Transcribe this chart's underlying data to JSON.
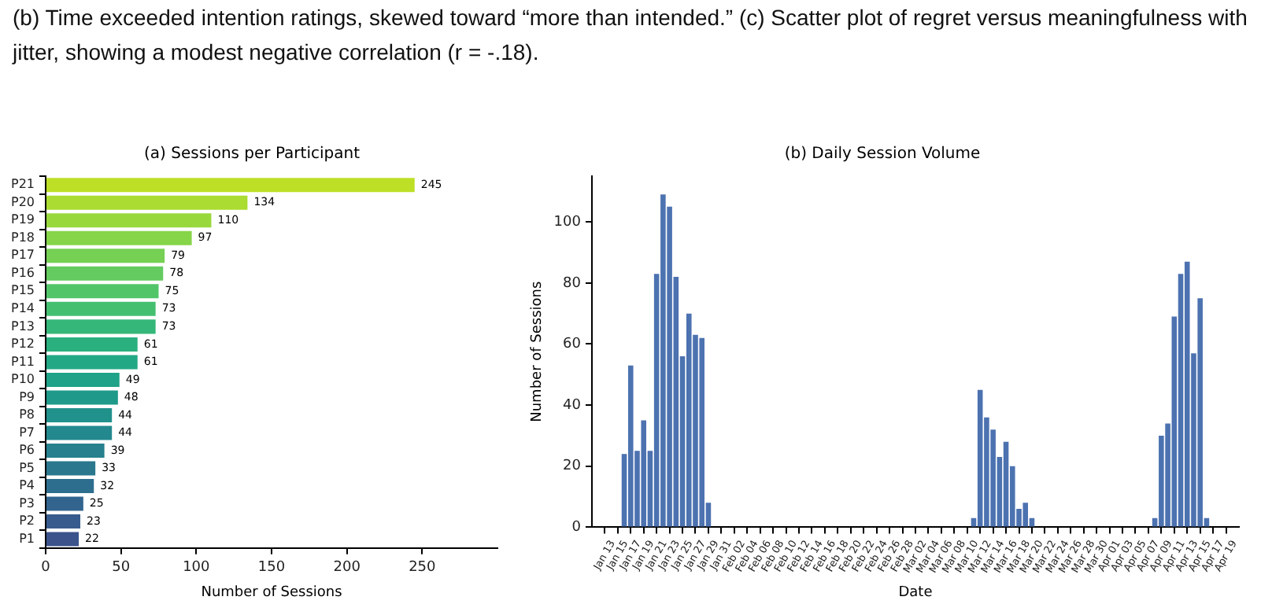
{
  "chart_data": [
    {
      "type": "bar",
      "orientation": "horizontal",
      "title": "(a) Sessions per Participant",
      "xlabel": "Number of Sessions",
      "annotations": [
        "(b) Time exceeded intention ratings, skewed toward “more than intended.” (c) Scatter plot of regret versus meaningfulness with jitter, showing a modest negative correlation (r = -.18)."
      ],
      "categories": [
        "P21",
        "P20",
        "P19",
        "P18",
        "P17",
        "P16",
        "P15",
        "P14",
        "P13",
        "P12",
        "P11",
        "P10",
        "P9",
        "P8",
        "P7",
        "P6",
        "P5",
        "P4",
        "P3",
        "P2",
        "P1"
      ],
      "values": [
        245,
        134,
        110,
        97,
        79,
        78,
        75,
        73,
        73,
        61,
        61,
        49,
        48,
        44,
        44,
        39,
        33,
        32,
        25,
        23,
        22
      ],
      "colors": [
        "#bddf26",
        "#abdc32",
        "#99d83d",
        "#86d549",
        "#75d054",
        "#63cb5f",
        "#52c569",
        "#44bf70",
        "#35b779",
        "#2ab07f",
        "#22a884",
        "#1fa287",
        "#1f9a8a",
        "#21918c",
        "#23898e",
        "#26808e",
        "#2a778e",
        "#2d6e8e",
        "#32648e",
        "#375b8d",
        "#3b528b"
      ],
      "xlim": [
        0,
        300
      ],
      "xticks": [
        0,
        50,
        100,
        150,
        200,
        250
      ],
      "data_labels": true
    },
    {
      "type": "bar",
      "title": "(b) Daily Session Volume",
      "xlabel": "Date",
      "ylabel": "Number of Sessions",
      "x": [
        "--01-16",
        "--01-17",
        "--01-18",
        "--01-19",
        "--01-20",
        "--01-21",
        "--01-22",
        "--01-23",
        "--01-24",
        "--01-25",
        "--01-26",
        "--01-27",
        "--01-28",
        "--01-29",
        "--03-11",
        "--03-12",
        "--03-13",
        "--03-14",
        "--03-15",
        "--03-16",
        "--03-17",
        "--03-18",
        "--03-19",
        "--03-20",
        "--04-08",
        "--04-09",
        "--04-10",
        "--04-11",
        "--04-12",
        "--04-13",
        "--04-14",
        "--04-15",
        "--04-16"
      ],
      "values": [
        24,
        53,
        25,
        35,
        25,
        83,
        109,
        105,
        82,
        56,
        70,
        63,
        62,
        8,
        3,
        45,
        36,
        32,
        23,
        28,
        20,
        6,
        8,
        3,
        3,
        30,
        34,
        69,
        83,
        87,
        57,
        75,
        3
      ],
      "color": "#4c72b0",
      "ylim": [
        0,
        115
      ],
      "yticks": [
        0,
        20,
        40,
        60,
        80,
        100
      ],
      "xlim": [
        "--01-11",
        "--04-21"
      ],
      "xticks": [
        {
          "value": "--01-13",
          "label": "Jan 13"
        },
        {
          "value": "--01-15",
          "label": "Jan 15"
        },
        {
          "value": "--01-17",
          "label": "Jan 17"
        },
        {
          "value": "--01-19",
          "label": "Jan 19"
        },
        {
          "value": "--01-21",
          "label": "Jan 21"
        },
        {
          "value": "--01-23",
          "label": "Jan 23"
        },
        {
          "value": "--01-25",
          "label": "Jan 25"
        },
        {
          "value": "--01-27",
          "label": "Jan 27"
        },
        {
          "value": "--01-29",
          "label": "Jan 29"
        },
        {
          "value": "--01-31",
          "label": "Jan 31"
        },
        {
          "value": "--02-02",
          "label": "Feb 02"
        },
        {
          "value": "--02-04",
          "label": "Feb 04"
        },
        {
          "value": "--02-06",
          "label": "Feb 06"
        },
        {
          "value": "--02-08",
          "label": "Feb 08"
        },
        {
          "value": "--02-10",
          "label": "Feb 10"
        },
        {
          "value": "--02-12",
          "label": "Feb 12"
        },
        {
          "value": "--02-14",
          "label": "Feb 14"
        },
        {
          "value": "--02-16",
          "label": "Feb 16"
        },
        {
          "value": "--02-18",
          "label": "Feb 18"
        },
        {
          "value": "--02-20",
          "label": "Feb 20"
        },
        {
          "value": "--02-22",
          "label": "Feb 22"
        },
        {
          "value": "--02-24",
          "label": "Feb 24"
        },
        {
          "value": "--02-26",
          "label": "Feb 26"
        },
        {
          "value": "--02-28",
          "label": "Feb 28"
        },
        {
          "value": "--03-02",
          "label": "Mar 02"
        },
        {
          "value": "--03-04",
          "label": "Mar 04"
        },
        {
          "value": "--03-06",
          "label": "Mar 06"
        },
        {
          "value": "--03-08",
          "label": "Mar 08"
        },
        {
          "value": "--03-10",
          "label": "Mar 10"
        },
        {
          "value": "--03-12",
          "label": "Mar 12"
        },
        {
          "value": "--03-14",
          "label": "Mar 14"
        },
        {
          "value": "--03-16",
          "label": "Mar 16"
        },
        {
          "value": "--03-18",
          "label": "Mar 18"
        },
        {
          "value": "--03-20",
          "label": "Mar 20"
        },
        {
          "value": "--03-22",
          "label": "Mar 22"
        },
        {
          "value": "--03-24",
          "label": "Mar 24"
        },
        {
          "value": "--03-26",
          "label": "Mar 26"
        },
        {
          "value": "--03-28",
          "label": "Mar 28"
        },
        {
          "value": "--03-30",
          "label": "Mar 30"
        },
        {
          "value": "--04-01",
          "label": "Apr 01"
        },
        {
          "value": "--04-03",
          "label": "Apr 03"
        },
        {
          "value": "--04-05",
          "label": "Apr 05"
        },
        {
          "value": "--04-07",
          "label": "Apr 07"
        },
        {
          "value": "--04-09",
          "label": "Apr 09"
        },
        {
          "value": "--04-11",
          "label": "Apr 11"
        },
        {
          "value": "--04-13",
          "label": "Apr 13"
        },
        {
          "value": "--04-15",
          "label": "Apr 15"
        },
        {
          "value": "--04-17",
          "label": "Apr 17"
        },
        {
          "value": "--04-19",
          "label": "Apr 19"
        }
      ]
    }
  ]
}
